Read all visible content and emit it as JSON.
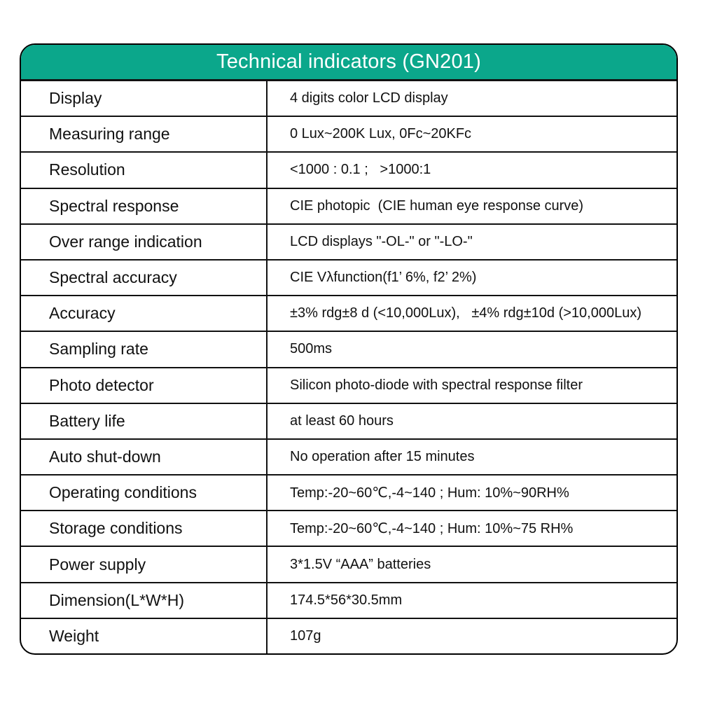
{
  "colors": {
    "header_bg": "#0ba78b",
    "header_text": "#ffffff",
    "border": "#111111",
    "text": "#111111",
    "background": "#ffffff"
  },
  "header": {
    "title": "Technical indicators (GN201)"
  },
  "table": {
    "rows": [
      {
        "label": "Display",
        "value": "4 digits color LCD display"
      },
      {
        "label": "Measuring range",
        "value": "0 Lux~200K Lux, 0Fc~20KFc"
      },
      {
        "label": "Resolution",
        "value": "<1000 : 0.1 ;   >1000:1"
      },
      {
        "label": "Spectral response",
        "value": "CIE photopic  (CIE human eye response curve)"
      },
      {
        "label": "Over range indication",
        "value": "LCD displays \"-OL-\" or \"-LO-\""
      },
      {
        "label": "Spectral accuracy",
        "value": "CIE Vλfunction(f1’ 6%, f2’ 2%)"
      },
      {
        "label": "Accuracy",
        "value": "±3% rdg±8 d (<10,000Lux),   ±4% rdg±10d (>10,000Lux)"
      },
      {
        "label": "Sampling rate",
        "value": "500ms"
      },
      {
        "label": "Photo detector",
        "value": "Silicon photo-diode with spectral response filter"
      },
      {
        "label": "Battery life",
        "value": "at least 60 hours"
      },
      {
        "label": "Auto shut-down",
        "value": "No operation after 15 minutes"
      },
      {
        "label": "Operating conditions",
        "value": "Temp:-20~60℃,-4~140 ; Hum: 10%~90RH%"
      },
      {
        "label": "Storage conditions",
        "value": "Temp:-20~60℃,-4~140 ; Hum: 10%~75 RH%"
      },
      {
        "label": "Power supply",
        "value": "3*1.5V “AAA” batteries"
      },
      {
        "label": "Dimension(L*W*H)",
        "value": "174.5*56*30.5mm"
      },
      {
        "label": "Weight",
        "value": "107g"
      }
    ]
  }
}
